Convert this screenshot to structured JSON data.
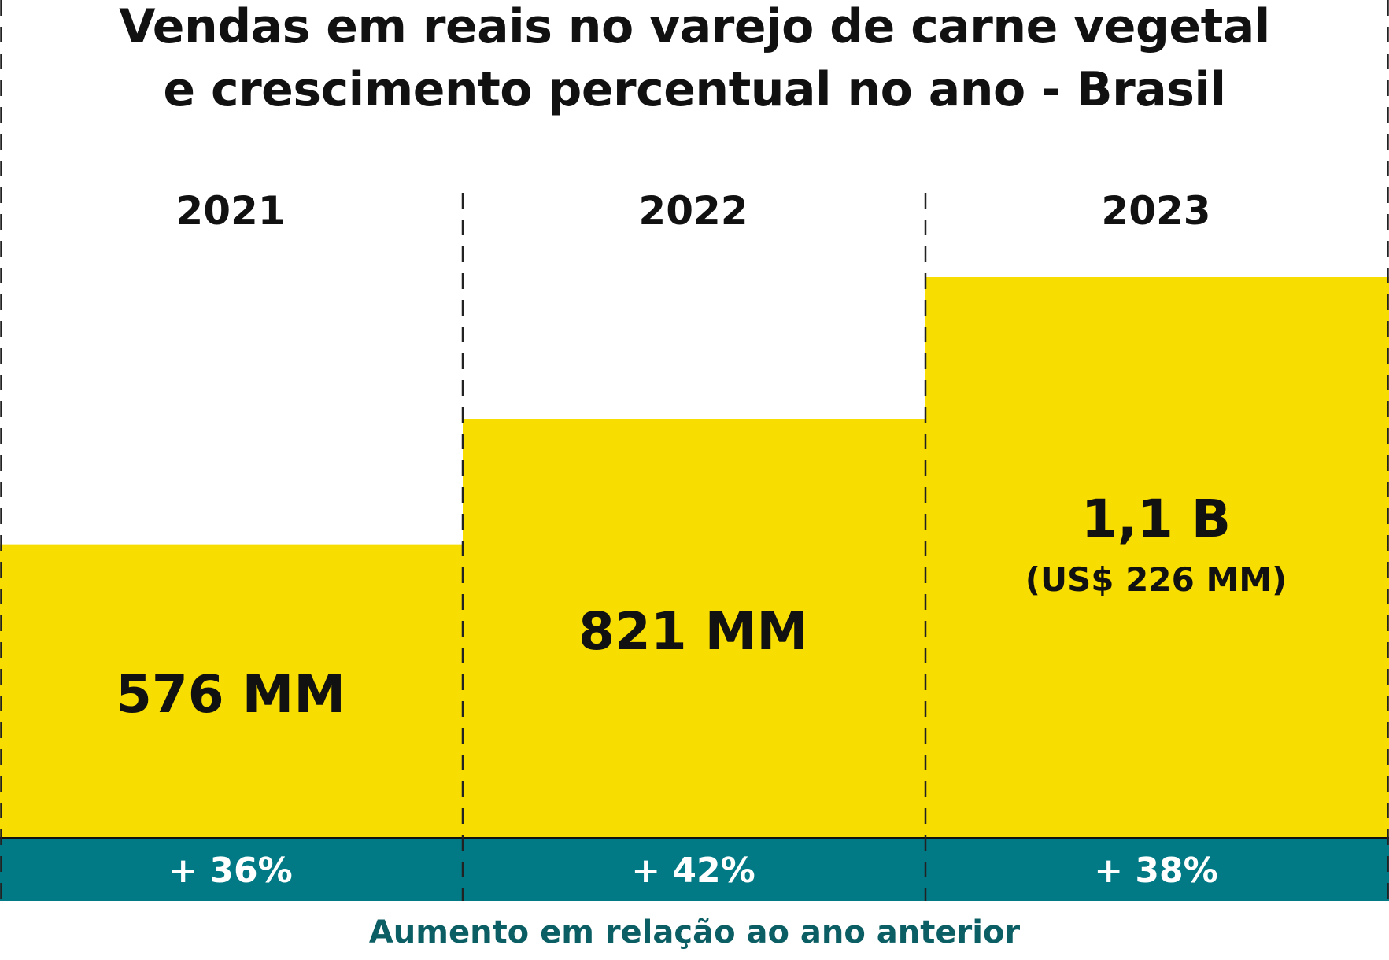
{
  "chart_data": {
    "type": "bar",
    "title_lines": [
      "Vendas em reais no varejo de carne vegetal",
      "e crescimento percentual no ano - Brasil"
    ],
    "categories": [
      "2021",
      "2022",
      "2023"
    ],
    "values": [
      576,
      821,
      1100
    ],
    "value_labels": [
      "576 MM",
      "821 MM",
      "1,1 B"
    ],
    "value_sublabels": [
      "",
      "",
      "(US$ 226 MM)"
    ],
    "growth_labels": [
      "+ 36%",
      "+ 42%",
      "+ 38%"
    ],
    "growth_caption": "Aumento em relação ao ano anterior",
    "ylim": [
      0,
      1100
    ],
    "grid": false,
    "colors": {
      "bar": "#F8DD00",
      "band": "#027A86",
      "band_text": "#FFFFFF",
      "caption": "#0B5E63",
      "text": "#111111"
    }
  }
}
